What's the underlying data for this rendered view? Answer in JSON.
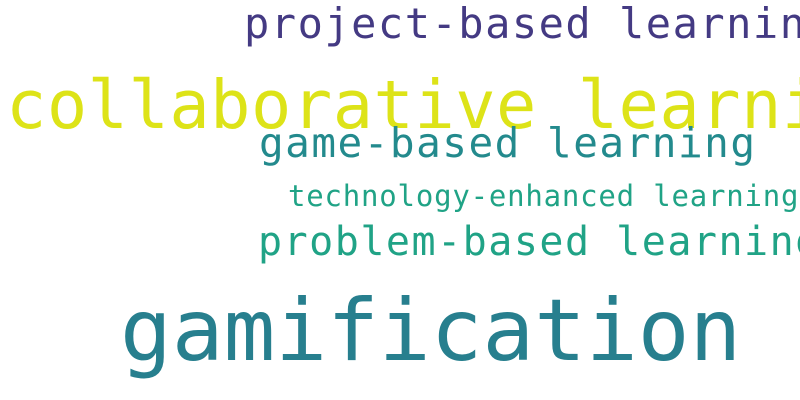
{
  "word_cloud": {
    "words": [
      {
        "text": "project-based learning",
        "color": "#443a83"
      },
      {
        "text": "collaborative learning",
        "color": "#dde318"
      },
      {
        "text": "game-based learning",
        "color": "#238a8d"
      },
      {
        "text": "technology-enhanced learning",
        "color": "#20a386"
      },
      {
        "text": "problem-based learning",
        "color": "#20a386"
      },
      {
        "text": "gamification",
        "color": "#277f8e"
      }
    ],
    "background": "#ffffff"
  }
}
